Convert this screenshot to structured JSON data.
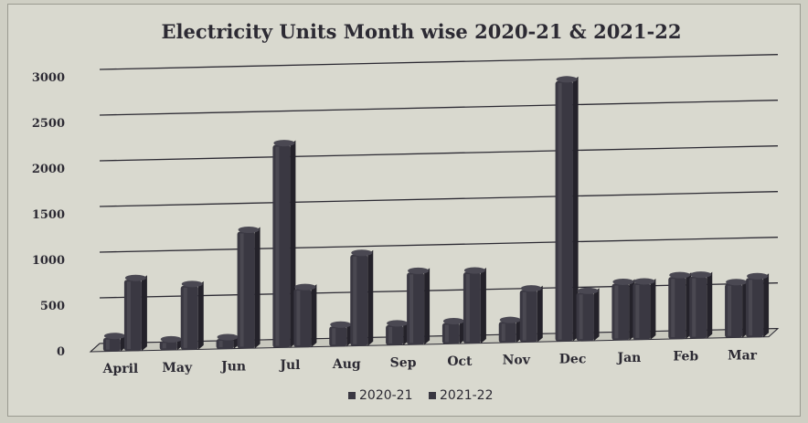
{
  "chart_data": {
    "type": "bar",
    "title": "Electricity Units Month wise 2020-21 & 2021-22",
    "xlabel": "",
    "ylabel": "",
    "categories": [
      "April",
      "May",
      "Jun",
      "Jul",
      "Aug",
      "Sep",
      "Oct",
      "Nov",
      "Dec",
      "Jan",
      "Feb",
      "Mar"
    ],
    "series": [
      {
        "name": "2020-21",
        "values": [
          150,
          100,
          110,
          2220,
          220,
          220,
          230,
          230,
          2850,
          620,
          680,
          590
        ],
        "color": "#3a3842"
      },
      {
        "name": "2021-22",
        "values": [
          780,
          700,
          1280,
          640,
          1000,
          790,
          780,
          570,
          530,
          620,
          680,
          650
        ],
        "color": "#3a3842"
      }
    ],
    "yticks": [
      "0",
      "500",
      "1000",
      "1500",
      "2000",
      "2500",
      "3000"
    ],
    "ylim": [
      0,
      3000
    ],
    "grid": true,
    "legend_position": "bottom",
    "colors": {
      "bar": "#3a3842",
      "bar_light": "#55535c",
      "grid": "#2c2a33",
      "text": "#2c2a33",
      "background": "#d9d9cf"
    }
  }
}
